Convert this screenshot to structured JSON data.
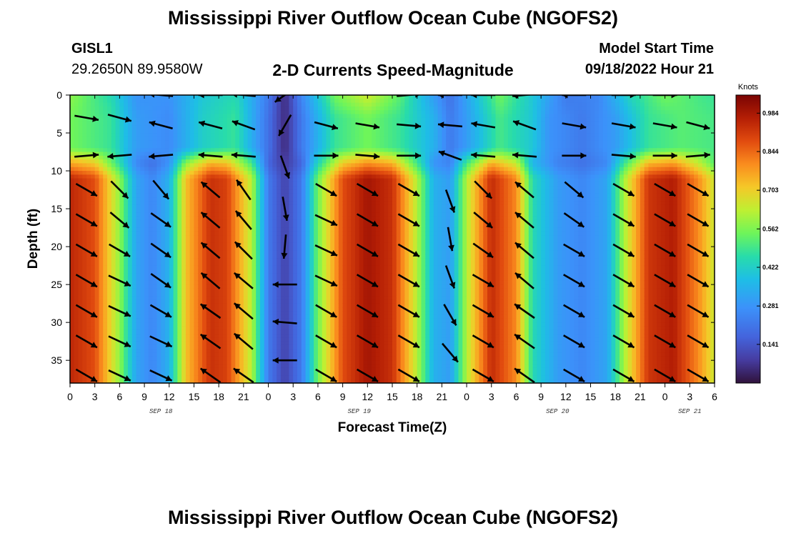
{
  "header": {
    "title": "Mississippi River Outflow Ocean Cube (NGOFS2)",
    "station": "GISL1",
    "coords": "29.2650N  89.9580W",
    "subtitle": "2-D Currents Speed-Magnitude",
    "model_label": "Model Start Time",
    "model_time": "09/18/2022 Hour 21"
  },
  "footer": {
    "title": "Mississippi River Outflow Ocean Cube (NGOFS2)"
  },
  "chart_data": {
    "type": "heatmap",
    "title": "2-D Currents Speed-Magnitude",
    "xlabel": "Forecast Time(Z)",
    "ylabel": "Depth (ft)",
    "x_range_hours": [
      0,
      78
    ],
    "y_range_ft": [
      0,
      38
    ],
    "x_tick_labels": [
      "0",
      "3",
      "6",
      "9",
      "12",
      "15",
      "18",
      "21",
      "0",
      "3",
      "6",
      "9",
      "12",
      "15",
      "18",
      "21",
      "0",
      "3",
      "6",
      "9",
      "12",
      "15",
      "18",
      "21",
      "0",
      "3",
      "6"
    ],
    "y_ticks": [
      0,
      5,
      10,
      15,
      20,
      25,
      30,
      35
    ],
    "y_tick_labels": [
      "0",
      "5",
      "10",
      "15",
      "20",
      "25",
      "30",
      "35"
    ],
    "date_labels": [
      {
        "text": "SEP 18",
        "hour": 11
      },
      {
        "text": "SEP 19",
        "hour": 35
      },
      {
        "text": "SEP 20",
        "hour": 59
      },
      {
        "text": "SEP 21",
        "hour": 75
      }
    ],
    "colorbar": {
      "title": "Knots",
      "min": 0.0,
      "max": 1.05,
      "ticks": [
        0.984,
        0.844,
        0.703,
        0.562,
        0.422,
        0.281,
        0.141
      ],
      "tick_labels": [
        "0.984",
        "0.844",
        "0.703",
        "0.562",
        "0.422",
        "0.281",
        "0.141"
      ]
    },
    "layers": {
      "surface_depth_ft": [
        0,
        3
      ],
      "upper_depth_ft": [
        3,
        7
      ],
      "lower_depth_ft": [
        9,
        38
      ]
    },
    "lower_layer_speed_knots_by_hour": [
      [
        0,
        0.95
      ],
      [
        3,
        0.88
      ],
      [
        6,
        0.58
      ],
      [
        8,
        0.32
      ],
      [
        10,
        0.25
      ],
      [
        12,
        0.35
      ],
      [
        14,
        0.72
      ],
      [
        17,
        0.93
      ],
      [
        19,
        0.9
      ],
      [
        22,
        0.62
      ],
      [
        24,
        0.22
      ],
      [
        26,
        0.1
      ],
      [
        28,
        0.22
      ],
      [
        30,
        0.55
      ],
      [
        33,
        0.88
      ],
      [
        36,
        0.99
      ],
      [
        39,
        0.93
      ],
      [
        42,
        0.62
      ],
      [
        44,
        0.35
      ],
      [
        46,
        0.3
      ],
      [
        48,
        0.62
      ],
      [
        51,
        0.94
      ],
      [
        54,
        0.8
      ],
      [
        56,
        0.45
      ],
      [
        59,
        0.3
      ],
      [
        62,
        0.25
      ],
      [
        65,
        0.32
      ],
      [
        67,
        0.6
      ],
      [
        70,
        0.92
      ],
      [
        73,
        0.97
      ],
      [
        76,
        0.8
      ],
      [
        78,
        0.65
      ]
    ],
    "upper_layer_speed_knots_by_hour": [
      [
        0,
        0.55
      ],
      [
        5,
        0.48
      ],
      [
        8,
        0.3
      ],
      [
        12,
        0.26
      ],
      [
        16,
        0.42
      ],
      [
        20,
        0.48
      ],
      [
        24,
        0.2
      ],
      [
        26,
        0.05
      ],
      [
        28,
        0.22
      ],
      [
        32,
        0.48
      ],
      [
        36,
        0.55
      ],
      [
        40,
        0.48
      ],
      [
        44,
        0.35
      ],
      [
        46,
        0.22
      ],
      [
        48,
        0.3
      ],
      [
        52,
        0.5
      ],
      [
        56,
        0.4
      ],
      [
        58,
        0.28
      ],
      [
        62,
        0.22
      ],
      [
        66,
        0.3
      ],
      [
        70,
        0.48
      ],
      [
        74,
        0.52
      ],
      [
        78,
        0.5
      ]
    ],
    "surface_speed_knots_by_hour": [
      [
        0,
        0.58
      ],
      [
        5,
        0.45
      ],
      [
        8,
        0.28
      ],
      [
        12,
        0.28
      ],
      [
        16,
        0.4
      ],
      [
        20,
        0.45
      ],
      [
        24,
        0.22
      ],
      [
        26,
        0.05
      ],
      [
        28,
        0.25
      ],
      [
        32,
        0.55
      ],
      [
        36,
        0.65
      ],
      [
        40,
        0.52
      ],
      [
        44,
        0.3
      ],
      [
        46,
        0.2
      ],
      [
        48,
        0.32
      ],
      [
        52,
        0.55
      ],
      [
        56,
        0.4
      ],
      [
        60,
        0.22
      ],
      [
        64,
        0.25
      ],
      [
        68,
        0.45
      ],
      [
        72,
        0.55
      ],
      [
        76,
        0.5
      ],
      [
        78,
        0.48
      ]
    ],
    "vectors": [
      [
        2,
        3,
        350
      ],
      [
        2,
        8,
        5
      ],
      [
        2,
        12.5,
        330
      ],
      [
        2,
        16.5,
        330
      ],
      [
        2,
        20.5,
        330
      ],
      [
        2,
        24.5,
        330
      ],
      [
        2,
        28.5,
        330
      ],
      [
        2,
        32.5,
        330
      ],
      [
        2,
        37,
        330
      ],
      [
        6,
        3,
        345
      ],
      [
        6,
        8,
        185
      ],
      [
        6,
        12.5,
        315
      ],
      [
        6,
        16.5,
        320
      ],
      [
        6,
        20.5,
        330
      ],
      [
        6,
        24.5,
        335
      ],
      [
        6,
        28.5,
        335
      ],
      [
        6,
        32.5,
        335
      ],
      [
        6,
        37,
        335
      ],
      [
        11,
        0,
        175
      ],
      [
        11,
        4,
        165
      ],
      [
        11,
        8,
        185
      ],
      [
        11,
        12.5,
        310
      ],
      [
        11,
        16.5,
        325
      ],
      [
        11,
        20.5,
        325
      ],
      [
        11,
        24.5,
        325
      ],
      [
        11,
        28.5,
        330
      ],
      [
        11,
        32.5,
        335
      ],
      [
        11,
        37,
        335
      ],
      [
        17,
        0,
        180
      ],
      [
        17,
        4,
        165
      ],
      [
        17,
        8,
        175
      ],
      [
        17,
        12.5,
        140
      ],
      [
        17,
        16.5,
        140
      ],
      [
        17,
        20.5,
        140
      ],
      [
        17,
        24.5,
        140
      ],
      [
        17,
        28.5,
        145
      ],
      [
        17,
        32.5,
        145
      ],
      [
        17,
        37,
        145
      ],
      [
        21,
        0,
        175
      ],
      [
        21,
        4,
        160
      ],
      [
        21,
        8,
        175
      ],
      [
        21,
        12.5,
        125
      ],
      [
        21,
        16.5,
        130
      ],
      [
        21,
        20.5,
        135
      ],
      [
        21,
        24.5,
        140
      ],
      [
        21,
        28.5,
        140
      ],
      [
        21,
        32.5,
        140
      ],
      [
        21,
        37,
        145
      ],
      [
        26,
        0,
        215
      ],
      [
        26,
        4,
        240
      ],
      [
        26,
        9.5,
        290
      ],
      [
        26,
        15,
        280
      ],
      [
        26,
        20,
        265
      ],
      [
        26,
        25,
        180
      ],
      [
        26,
        30,
        175
      ],
      [
        26,
        35,
        180
      ],
      [
        31,
        4,
        345
      ],
      [
        31,
        8,
        0
      ],
      [
        31,
        12.5,
        330
      ],
      [
        31,
        16.5,
        335
      ],
      [
        31,
        20.5,
        335
      ],
      [
        31,
        24.5,
        335
      ],
      [
        31,
        28.5,
        330
      ],
      [
        31,
        32.5,
        330
      ],
      [
        31,
        37,
        330
      ],
      [
        36,
        4,
        350
      ],
      [
        36,
        8,
        355
      ],
      [
        36,
        12.5,
        330
      ],
      [
        36,
        16.5,
        330
      ],
      [
        36,
        20.5,
        330
      ],
      [
        36,
        24.5,
        330
      ],
      [
        36,
        28.5,
        330
      ],
      [
        36,
        32.5,
        330
      ],
      [
        36,
        37,
        330
      ],
      [
        41,
        0,
        5
      ],
      [
        41,
        4,
        355
      ],
      [
        41,
        8,
        0
      ],
      [
        41,
        12.5,
        330
      ],
      [
        41,
        16.5,
        330
      ],
      [
        41,
        20.5,
        330
      ],
      [
        41,
        24.5,
        330
      ],
      [
        41,
        28.5,
        330
      ],
      [
        41,
        32.5,
        330
      ],
      [
        41,
        37,
        330
      ],
      [
        46,
        0,
        180
      ],
      [
        46,
        4,
        175
      ],
      [
        46,
        8,
        160
      ],
      [
        46,
        14,
        290
      ],
      [
        46,
        19,
        280
      ],
      [
        46,
        24,
        290
      ],
      [
        46,
        29,
        300
      ],
      [
        46,
        34,
        310
      ],
      [
        50,
        0,
        180
      ],
      [
        50,
        4,
        170
      ],
      [
        50,
        8,
        175
      ],
      [
        50,
        12.5,
        315
      ],
      [
        50,
        16.5,
        320
      ],
      [
        50,
        20.5,
        325
      ],
      [
        50,
        24.5,
        330
      ],
      [
        50,
        28.5,
        330
      ],
      [
        50,
        32.5,
        330
      ],
      [
        50,
        37,
        330
      ],
      [
        55,
        0,
        185
      ],
      [
        55,
        4,
        160
      ],
      [
        55,
        8,
        175
      ],
      [
        55,
        12.5,
        140
      ],
      [
        55,
        16.5,
        140
      ],
      [
        55,
        20.5,
        140
      ],
      [
        55,
        24.5,
        140
      ],
      [
        55,
        28.5,
        145
      ],
      [
        55,
        32.5,
        145
      ],
      [
        55,
        37,
        145
      ],
      [
        61,
        0,
        180
      ],
      [
        61,
        4,
        350
      ],
      [
        61,
        8,
        0
      ],
      [
        61,
        12.5,
        320
      ],
      [
        61,
        16.5,
        325
      ],
      [
        61,
        20.5,
        330
      ],
      [
        61,
        24.5,
        330
      ],
      [
        61,
        28.5,
        330
      ],
      [
        61,
        32.5,
        330
      ],
      [
        61,
        37,
        330
      ],
      [
        67,
        0,
        0
      ],
      [
        67,
        4,
        350
      ],
      [
        67,
        8,
        355
      ],
      [
        67,
        12.5,
        330
      ],
      [
        67,
        16.5,
        330
      ],
      [
        67,
        20.5,
        330
      ],
      [
        67,
        24.5,
        330
      ],
      [
        67,
        28.5,
        330
      ],
      [
        67,
        32.5,
        330
      ],
      [
        67,
        37,
        330
      ],
      [
        72,
        0,
        0
      ],
      [
        72,
        4,
        350
      ],
      [
        72,
        8,
        0
      ],
      [
        72,
        12.5,
        330
      ],
      [
        72,
        16.5,
        330
      ],
      [
        72,
        20.5,
        330
      ],
      [
        72,
        24.5,
        330
      ],
      [
        72,
        28.5,
        330
      ],
      [
        72,
        32.5,
        330
      ],
      [
        72,
        37,
        330
      ],
      [
        76,
        4,
        345
      ],
      [
        76,
        8,
        5
      ],
      [
        76,
        12.5,
        330
      ],
      [
        76,
        16.5,
        330
      ],
      [
        76,
        20.5,
        330
      ],
      [
        76,
        24.5,
        330
      ],
      [
        76,
        28.5,
        330
      ],
      [
        76,
        32.5,
        330
      ],
      [
        76,
        37,
        330
      ]
    ]
  }
}
